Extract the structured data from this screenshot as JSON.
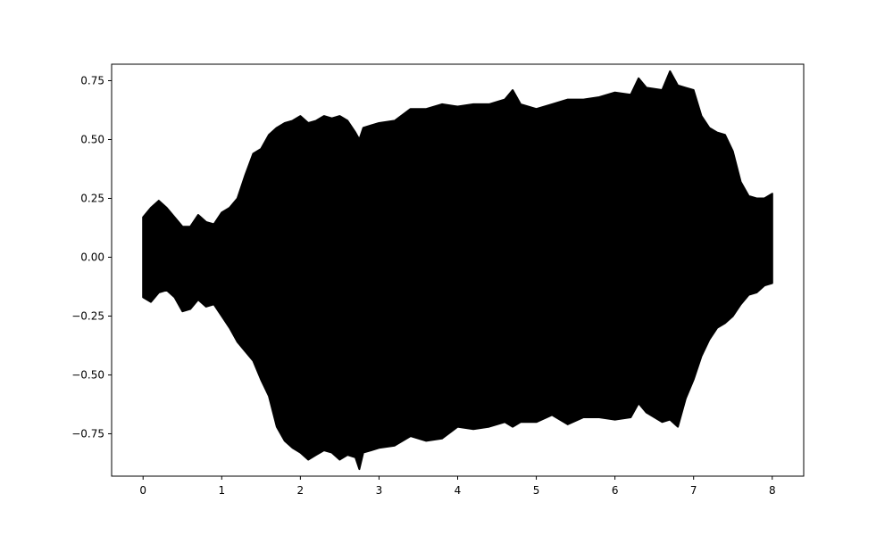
{
  "chart_data": {
    "type": "line",
    "title": "",
    "xlabel": "",
    "ylabel": "",
    "xlim": [
      -0.4,
      8.4
    ],
    "ylim": [
      -0.93,
      0.82
    ],
    "x_ticks": [
      {
        "value": 0,
        "label": "0"
      },
      {
        "value": 1,
        "label": "1"
      },
      {
        "value": 2,
        "label": "2"
      },
      {
        "value": 3,
        "label": "3"
      },
      {
        "value": 4,
        "label": "4"
      },
      {
        "value": 5,
        "label": "5"
      },
      {
        "value": 6,
        "label": "6"
      },
      {
        "value": 7,
        "label": "7"
      },
      {
        "value": 8,
        "label": "8"
      }
    ],
    "y_ticks": [
      {
        "value": 0.75,
        "label": "0.75"
      },
      {
        "value": 0.5,
        "label": "0.50"
      },
      {
        "value": 0.25,
        "label": "0.25"
      },
      {
        "value": 0,
        "label": "0.00"
      },
      {
        "value": -0.25,
        "label": "−0.25"
      },
      {
        "value": -0.5,
        "label": "−0.50"
      },
      {
        "value": -0.75,
        "label": "−0.75"
      }
    ],
    "grid": false,
    "series": [
      {
        "color": "#000000",
        "x": [
          0,
          0.1,
          0.2,
          0.3,
          0.4,
          0.5,
          0.6,
          0.7,
          0.8,
          0.9,
          1.0,
          1.1,
          1.2,
          1.3,
          1.4,
          1.5,
          1.6,
          1.7,
          1.8,
          1.9,
          2.0,
          2.1,
          2.2,
          2.3,
          2.4,
          2.5,
          2.6,
          2.7,
          2.75,
          2.8,
          2.9,
          3.0,
          3.2,
          3.4,
          3.6,
          3.8,
          4.0,
          4.2,
          4.4,
          4.6,
          4.7,
          4.8,
          5.0,
          5.2,
          5.4,
          5.6,
          5.8,
          6.0,
          6.2,
          6.3,
          6.4,
          6.6,
          6.7,
          6.8,
          6.9,
          7.0,
          7.1,
          7.2,
          7.3,
          7.4,
          7.5,
          7.6,
          7.7,
          7.8,
          7.9,
          8.0
        ],
        "upper": [
          0.17,
          0.21,
          0.24,
          0.21,
          0.17,
          0.13,
          0.13,
          0.18,
          0.15,
          0.14,
          0.19,
          0.21,
          0.25,
          0.35,
          0.44,
          0.46,
          0.52,
          0.55,
          0.57,
          0.58,
          0.6,
          0.57,
          0.58,
          0.6,
          0.59,
          0.6,
          0.58,
          0.53,
          0.5,
          0.55,
          0.56,
          0.57,
          0.58,
          0.63,
          0.63,
          0.65,
          0.64,
          0.65,
          0.65,
          0.67,
          0.71,
          0.65,
          0.63,
          0.65,
          0.67,
          0.67,
          0.68,
          0.7,
          0.69,
          0.76,
          0.72,
          0.71,
          0.79,
          0.73,
          0.72,
          0.71,
          0.6,
          0.55,
          0.53,
          0.52,
          0.45,
          0.32,
          0.26,
          0.25,
          0.25,
          0.27
        ],
        "lower": [
          -0.17,
          -0.19,
          -0.15,
          -0.14,
          -0.17,
          -0.23,
          -0.22,
          -0.18,
          -0.21,
          -0.2,
          -0.25,
          -0.3,
          -0.36,
          -0.4,
          -0.44,
          -0.52,
          -0.59,
          -0.72,
          -0.78,
          -0.81,
          -0.83,
          -0.86,
          -0.84,
          -0.82,
          -0.83,
          -0.86,
          -0.84,
          -0.85,
          -0.9,
          -0.83,
          -0.82,
          -0.81,
          -0.8,
          -0.76,
          -0.78,
          -0.77,
          -0.72,
          -0.73,
          -0.72,
          -0.7,
          -0.72,
          -0.7,
          -0.7,
          -0.67,
          -0.71,
          -0.68,
          -0.68,
          -0.69,
          -0.68,
          -0.62,
          -0.66,
          -0.7,
          -0.69,
          -0.72,
          -0.6,
          -0.52,
          -0.42,
          -0.35,
          -0.3,
          -0.28,
          -0.25,
          -0.2,
          -0.16,
          -0.15,
          -0.12,
          -0.11
        ]
      }
    ]
  }
}
